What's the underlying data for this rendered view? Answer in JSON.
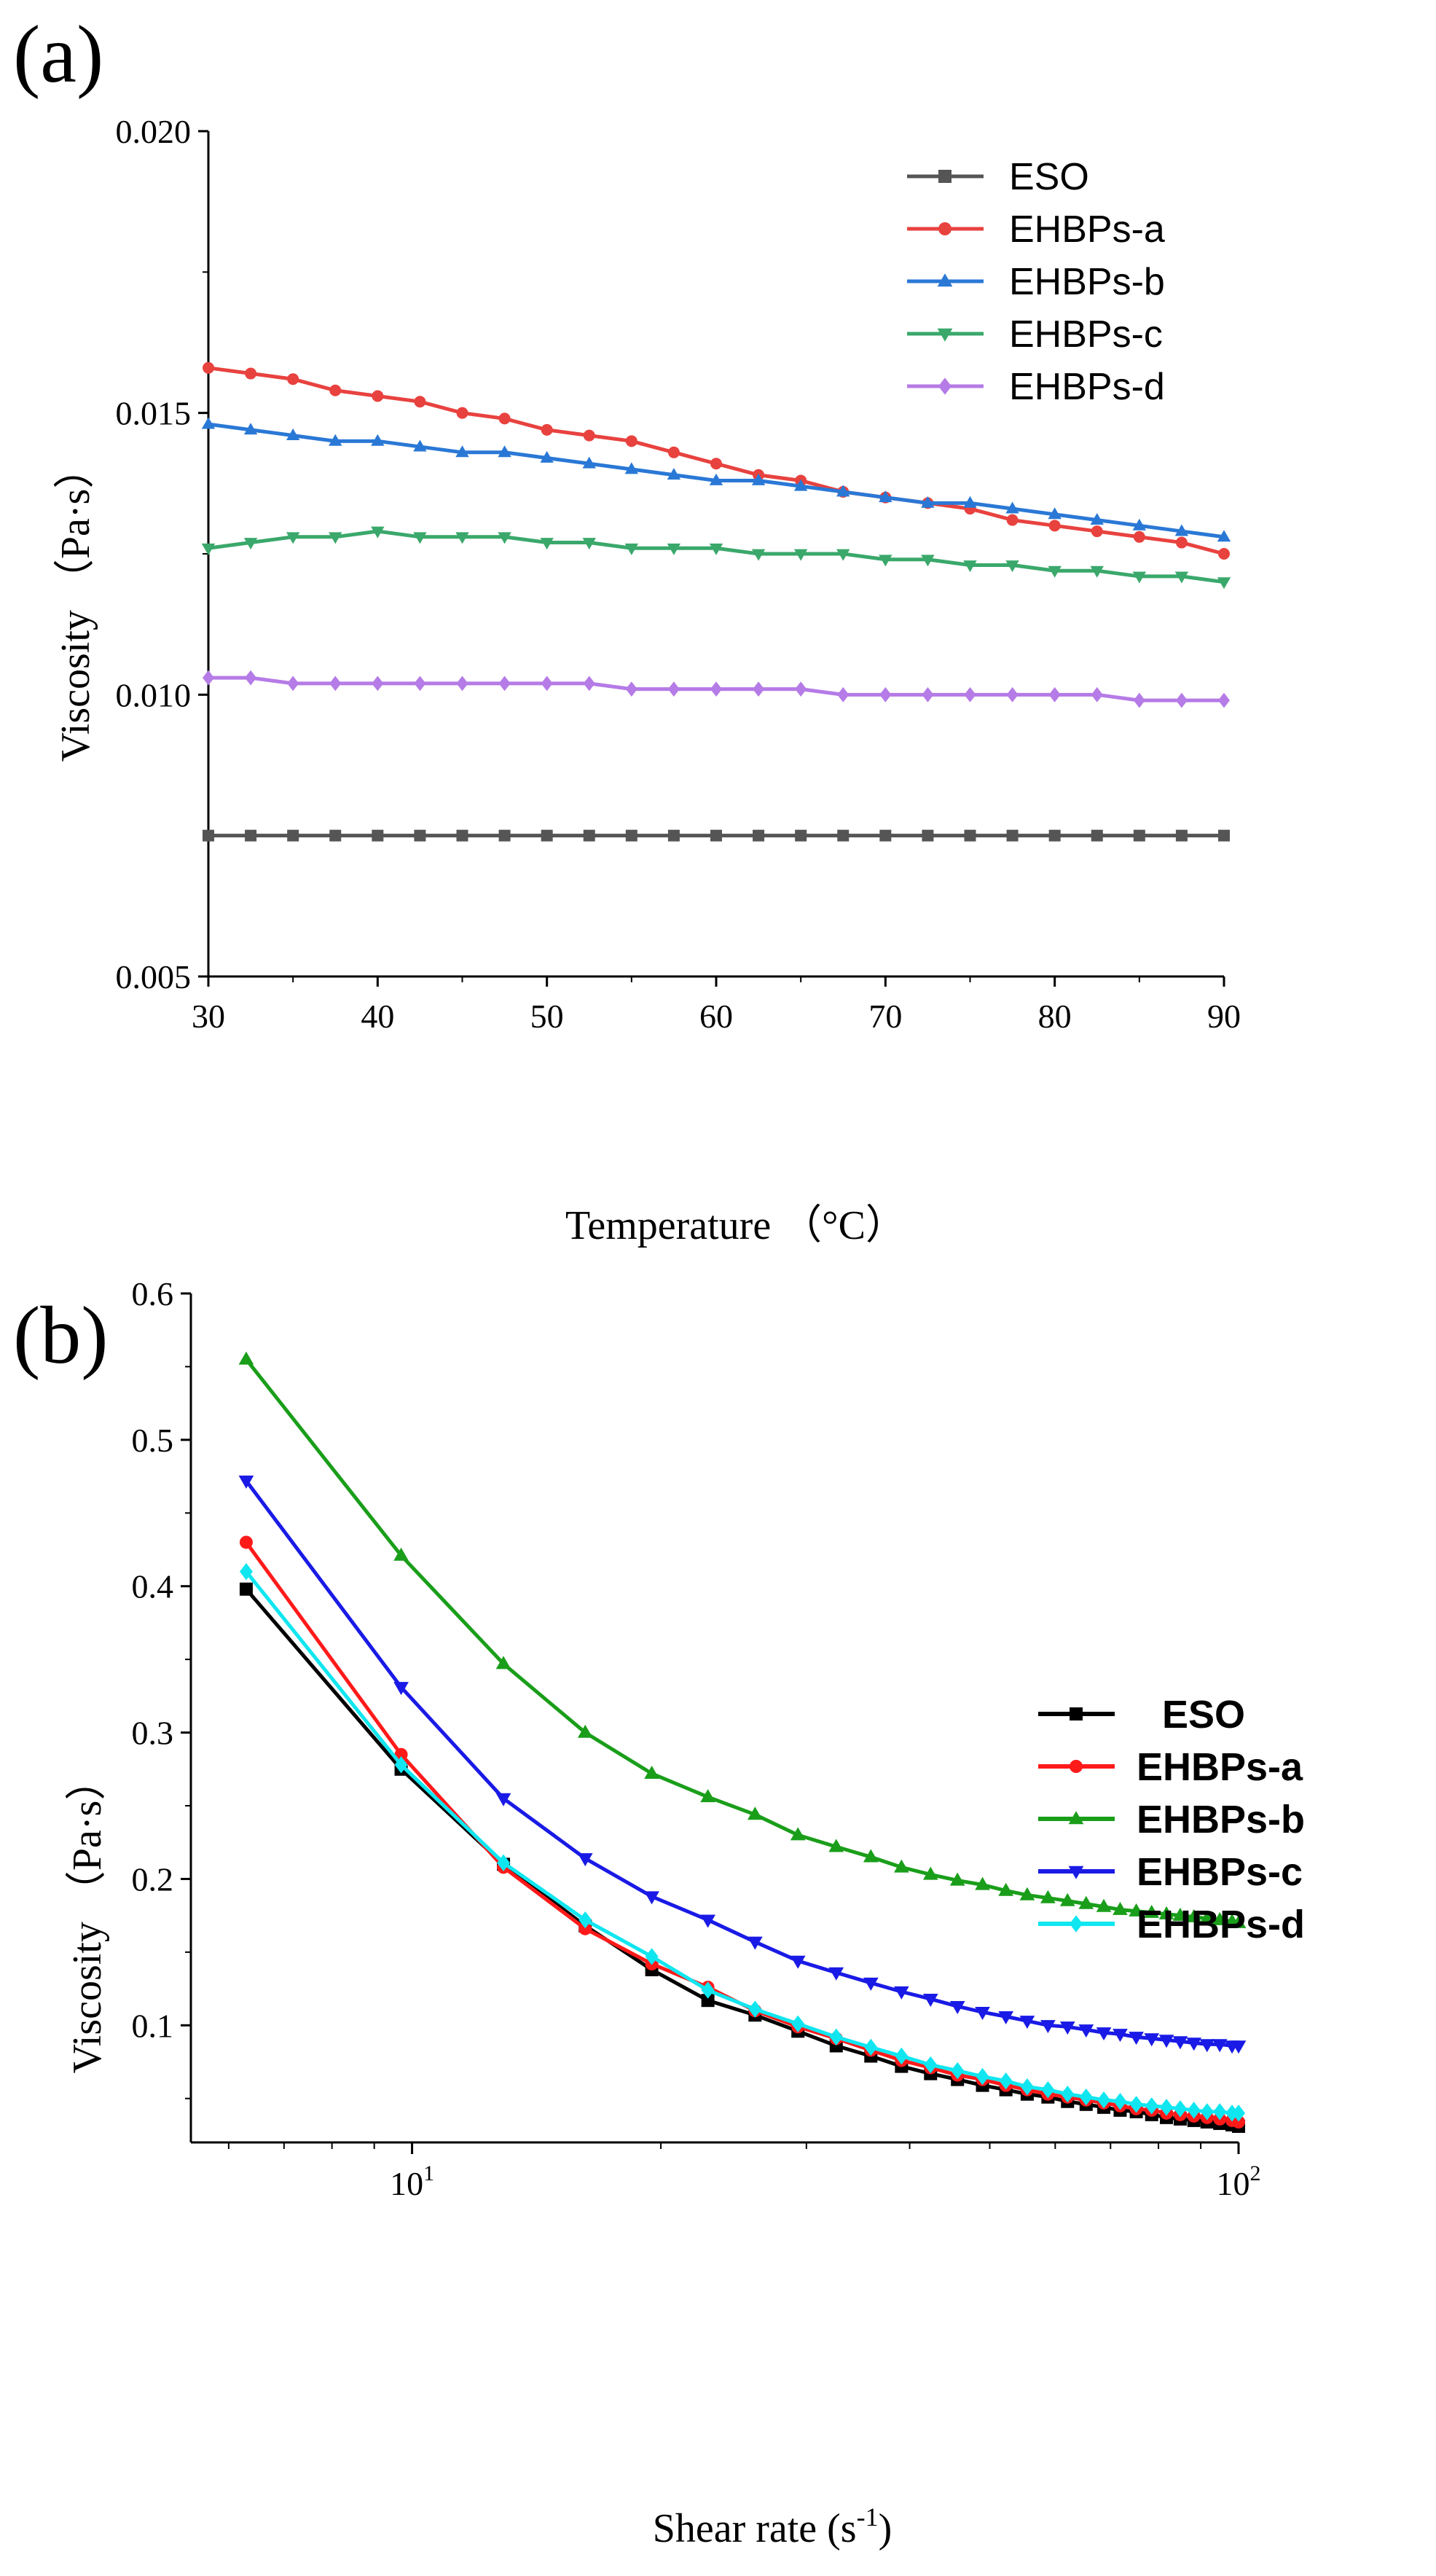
{
  "chart_data": [
    {
      "panel": "(a)",
      "type": "line",
      "xlabel": "Temperature （°C）",
      "ylabel": "Viscosity （Pa·s）",
      "xlim": [
        30,
        90
      ],
      "ylim": [
        0.005,
        0.02
      ],
      "xticks": [
        "30",
        "40",
        "50",
        "60",
        "70",
        "80",
        "90"
      ],
      "yticks": [
        "0.005",
        "0.010",
        "0.015",
        "0.020"
      ],
      "x": [
        30,
        32.5,
        35,
        37.5,
        40,
        42.5,
        45,
        47.5,
        50,
        52.5,
        55,
        57.5,
        60,
        62.5,
        65,
        67.5,
        70,
        72.5,
        75,
        77.5,
        80,
        82.5,
        85,
        87.5,
        90
      ],
      "legend_position": "top-right",
      "series": [
        {
          "name": "ESO",
          "color": "#555555",
          "marker": "square",
          "values": [
            0.0075,
            0.0075,
            0.0075,
            0.0075,
            0.0075,
            0.0075,
            0.0075,
            0.0075,
            0.0075,
            0.0075,
            0.0075,
            0.0075,
            0.0075,
            0.0075,
            0.0075,
            0.0075,
            0.0075,
            0.0075,
            0.0075,
            0.0075,
            0.0075,
            0.0075,
            0.0075,
            0.0075,
            0.0075
          ]
        },
        {
          "name": "EHBPs-a",
          "color": "#e8423f",
          "marker": "circle",
          "values": [
            0.0158,
            0.0157,
            0.0156,
            0.0154,
            0.0153,
            0.0152,
            0.015,
            0.0149,
            0.0147,
            0.0146,
            0.0145,
            0.0143,
            0.0141,
            0.0139,
            0.0138,
            0.0136,
            0.0135,
            0.0134,
            0.0133,
            0.0131,
            0.013,
            0.0129,
            0.0128,
            0.0127,
            0.0125
          ]
        },
        {
          "name": "EHBPs-b",
          "color": "#2a78d6",
          "marker": "triangle-up",
          "values": [
            0.0148,
            0.0147,
            0.0146,
            0.0145,
            0.0145,
            0.0144,
            0.0143,
            0.0143,
            0.0142,
            0.0141,
            0.014,
            0.0139,
            0.0138,
            0.0138,
            0.0137,
            0.0136,
            0.0135,
            0.0134,
            0.0134,
            0.0133,
            0.0132,
            0.0131,
            0.013,
            0.0129,
            0.0128
          ]
        },
        {
          "name": "EHBPs-c",
          "color": "#3aa86b",
          "marker": "triangle-down",
          "values": [
            0.0126,
            0.0127,
            0.0128,
            0.0128,
            0.0129,
            0.0128,
            0.0128,
            0.0128,
            0.0127,
            0.0127,
            0.0126,
            0.0126,
            0.0126,
            0.0125,
            0.0125,
            0.0125,
            0.0124,
            0.0124,
            0.0123,
            0.0123,
            0.0122,
            0.0122,
            0.0121,
            0.0121,
            0.012
          ]
        },
        {
          "name": "EHBPs-d",
          "color": "#b57be6",
          "marker": "diamond",
          "values": [
            0.0103,
            0.0103,
            0.0102,
            0.0102,
            0.0102,
            0.0102,
            0.0102,
            0.0102,
            0.0102,
            0.0102,
            0.0101,
            0.0101,
            0.0101,
            0.0101,
            0.0101,
            0.01,
            0.01,
            0.01,
            0.01,
            0.01,
            0.01,
            0.01,
            0.0099,
            0.0099,
            0.0099
          ]
        }
      ]
    },
    {
      "panel": "(b)",
      "type": "line",
      "xscale": "log",
      "xlabel_main": "Shear rate (s",
      "xlabel_sup": "-1",
      "xlabel_end": ")",
      "ylabel": "Viscosity （Pa·s）",
      "xlim": [
        5.4,
        100
      ],
      "ylim": [
        0.02,
        0.6
      ],
      "xticks": [
        {
          "value": 10,
          "base": "10",
          "exp": "1"
        },
        {
          "value": 100,
          "base": "10",
          "exp": "2"
        }
      ],
      "yticks": [
        "0.1",
        "0.2",
        "0.3",
        "0.4",
        "0.5",
        "0.6"
      ],
      "x": [
        6.3,
        9.7,
        12.9,
        16.2,
        19.5,
        22.8,
        26.0,
        29.3,
        32.6,
        35.9,
        39.1,
        42.4,
        45.7,
        49.0,
        52.3,
        55.5,
        58.8,
        62.1,
        65.4,
        68.7,
        71.9,
        75.2,
        78.5,
        81.8,
        85.0,
        88.3,
        91.6,
        94.9,
        98.2,
        100
      ],
      "legend_position": "right",
      "series": [
        {
          "name": "ESO",
          "color": "#000000",
          "marker": "square",
          "values": [
            0.398,
            0.275,
            0.21,
            0.168,
            0.138,
            0.117,
            0.107,
            0.096,
            0.086,
            0.079,
            0.072,
            0.067,
            0.063,
            0.059,
            0.056,
            0.053,
            0.051,
            0.048,
            0.046,
            0.044,
            0.042,
            0.041,
            0.039,
            0.037,
            0.036,
            0.035,
            0.034,
            0.033,
            0.032,
            0.031
          ]
        },
        {
          "name": "EHBPs-a",
          "color": "#ff1a1a",
          "marker": "circle",
          "values": [
            0.43,
            0.285,
            0.208,
            0.166,
            0.142,
            0.126,
            0.11,
            0.099,
            0.091,
            0.083,
            0.076,
            0.071,
            0.066,
            0.063,
            0.059,
            0.056,
            0.053,
            0.051,
            0.049,
            0.047,
            0.045,
            0.043,
            0.042,
            0.04,
            0.039,
            0.038,
            0.037,
            0.036,
            0.035,
            0.034
          ]
        },
        {
          "name": "EHBPs-b",
          "color": "#1a9e1a",
          "marker": "triangle-up",
          "values": [
            0.555,
            0.421,
            0.347,
            0.3,
            0.272,
            0.256,
            0.244,
            0.23,
            0.222,
            0.215,
            0.208,
            0.203,
            0.199,
            0.196,
            0.192,
            0.189,
            0.187,
            0.185,
            0.183,
            0.181,
            0.179,
            0.178,
            0.177,
            0.176,
            0.175,
            0.174,
            0.173,
            0.172,
            0.171,
            0.17
          ]
        },
        {
          "name": "EHBPs-c",
          "color": "#1a1ae6",
          "marker": "triangle-down",
          "values": [
            0.472,
            0.331,
            0.255,
            0.214,
            0.188,
            0.172,
            0.157,
            0.144,
            0.136,
            0.129,
            0.123,
            0.118,
            0.113,
            0.109,
            0.106,
            0.103,
            0.1,
            0.099,
            0.097,
            0.095,
            0.094,
            0.092,
            0.091,
            0.09,
            0.089,
            0.088,
            0.087,
            0.087,
            0.086,
            0.086
          ]
        },
        {
          "name": "EHBPs-d",
          "color": "#10e6f0",
          "marker": "diamond",
          "values": [
            0.41,
            0.278,
            0.211,
            0.172,
            0.147,
            0.124,
            0.111,
            0.101,
            0.092,
            0.085,
            0.079,
            0.073,
            0.069,
            0.065,
            0.062,
            0.058,
            0.056,
            0.053,
            0.051,
            0.049,
            0.048,
            0.046,
            0.045,
            0.044,
            0.043,
            0.042,
            0.041,
            0.041,
            0.04,
            0.04
          ]
        }
      ]
    }
  ]
}
